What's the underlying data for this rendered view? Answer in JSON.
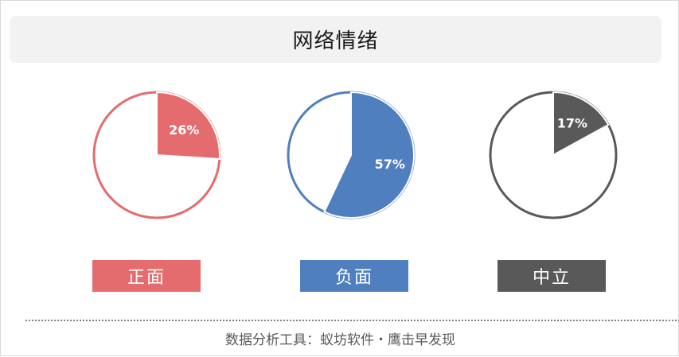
{
  "title": "网络情绪",
  "footer": "数据分析工具：蚁坊软件・鹰击早发现",
  "chart_data": {
    "type": "pie",
    "title": "网络情绪",
    "pies": [
      {
        "name": "正面",
        "value": 26,
        "label": "26%",
        "color": "#e46c6e"
      },
      {
        "name": "负面",
        "value": 57,
        "label": "57%",
        "color": "#4f7fbe"
      },
      {
        "name": "中立",
        "value": 17,
        "label": "17%",
        "color": "#595959"
      }
    ]
  }
}
